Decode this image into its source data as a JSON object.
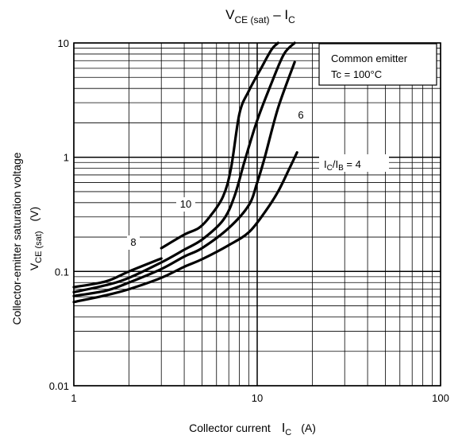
{
  "chart_data": {
    "type": "line",
    "title": {
      "main": "V",
      "sub": "CE (sat)",
      "dash": " – I",
      "sub2": "C"
    },
    "xlabel": {
      "text": "Collector current",
      "var": "I",
      "varsub": "C",
      "unit": "(A)"
    },
    "ylabel": {
      "line1": "Collector-emitter saturation voltage",
      "var": "V",
      "varsub": "CE (sat)",
      "unit": "(V)"
    },
    "x_scale": "log",
    "y_scale": "log",
    "xlim": [
      1,
      100
    ],
    "ylim": [
      0.01,
      10
    ],
    "x_ticks": [
      {
        "value": 1,
        "label": "1"
      },
      {
        "value": 10,
        "label": "10"
      },
      {
        "value": 100,
        "label": "100"
      }
    ],
    "y_ticks": [
      {
        "value": 0.01,
        "label": "0.01"
      },
      {
        "value": 0.1,
        "label": "0.1"
      },
      {
        "value": 1,
        "label": "1"
      },
      {
        "value": 10,
        "label": "10"
      }
    ],
    "grid": true,
    "legend_box": {
      "line1": "Common emitter",
      "line2": "Tc = 100°C",
      "placement": "top-right"
    },
    "series": [
      {
        "name": "4",
        "label": {
          "prefix_I": "I",
          "sub1": "C",
          "slash": "/I",
          "sub2": "B",
          "suffix": " = 4"
        },
        "x": [
          1,
          1.5,
          2,
          3,
          4,
          5,
          7,
          9,
          11,
          13,
          15,
          16.5
        ],
        "y": [
          0.054,
          0.062,
          0.07,
          0.088,
          0.11,
          0.128,
          0.17,
          0.22,
          0.33,
          0.5,
          0.8,
          1.1
        ]
      },
      {
        "name": "6",
        "label": {
          "text": "6"
        },
        "x": [
          1,
          1.5,
          2,
          3,
          4,
          5,
          7,
          9,
          10,
          11,
          13,
          16
        ],
        "y": [
          0.061,
          0.068,
          0.08,
          0.105,
          0.135,
          0.16,
          0.24,
          0.38,
          0.6,
          1.0,
          2.7,
          6.8
        ]
      },
      {
        "name": "8",
        "label": {
          "text": "8"
        },
        "x": [
          1,
          1.5,
          2,
          3,
          4,
          5,
          6.5,
          7.5,
          8.5,
          10,
          12,
          14,
          16
        ],
        "y": [
          0.066,
          0.076,
          0.088,
          0.12,
          0.155,
          0.19,
          0.28,
          0.45,
          0.9,
          2.1,
          4.5,
          8.0,
          10.0
        ]
      },
      {
        "name": "10",
        "label": {
          "text": "10"
        },
        "x": [
          3,
          4,
          4.8,
          5.5,
          6.5,
          7.2,
          8,
          9,
          10.5,
          12,
          13
        ],
        "y": [
          0.16,
          0.21,
          0.24,
          0.3,
          0.45,
          0.8,
          2.4,
          3.8,
          6.0,
          8.8,
          10.0
        ]
      }
    ],
    "extra_curve": {
      "x": [
        1,
        1.5,
        2,
        3
      ],
      "y": [
        0.073,
        0.082,
        0.1,
        0.13
      ]
    }
  }
}
